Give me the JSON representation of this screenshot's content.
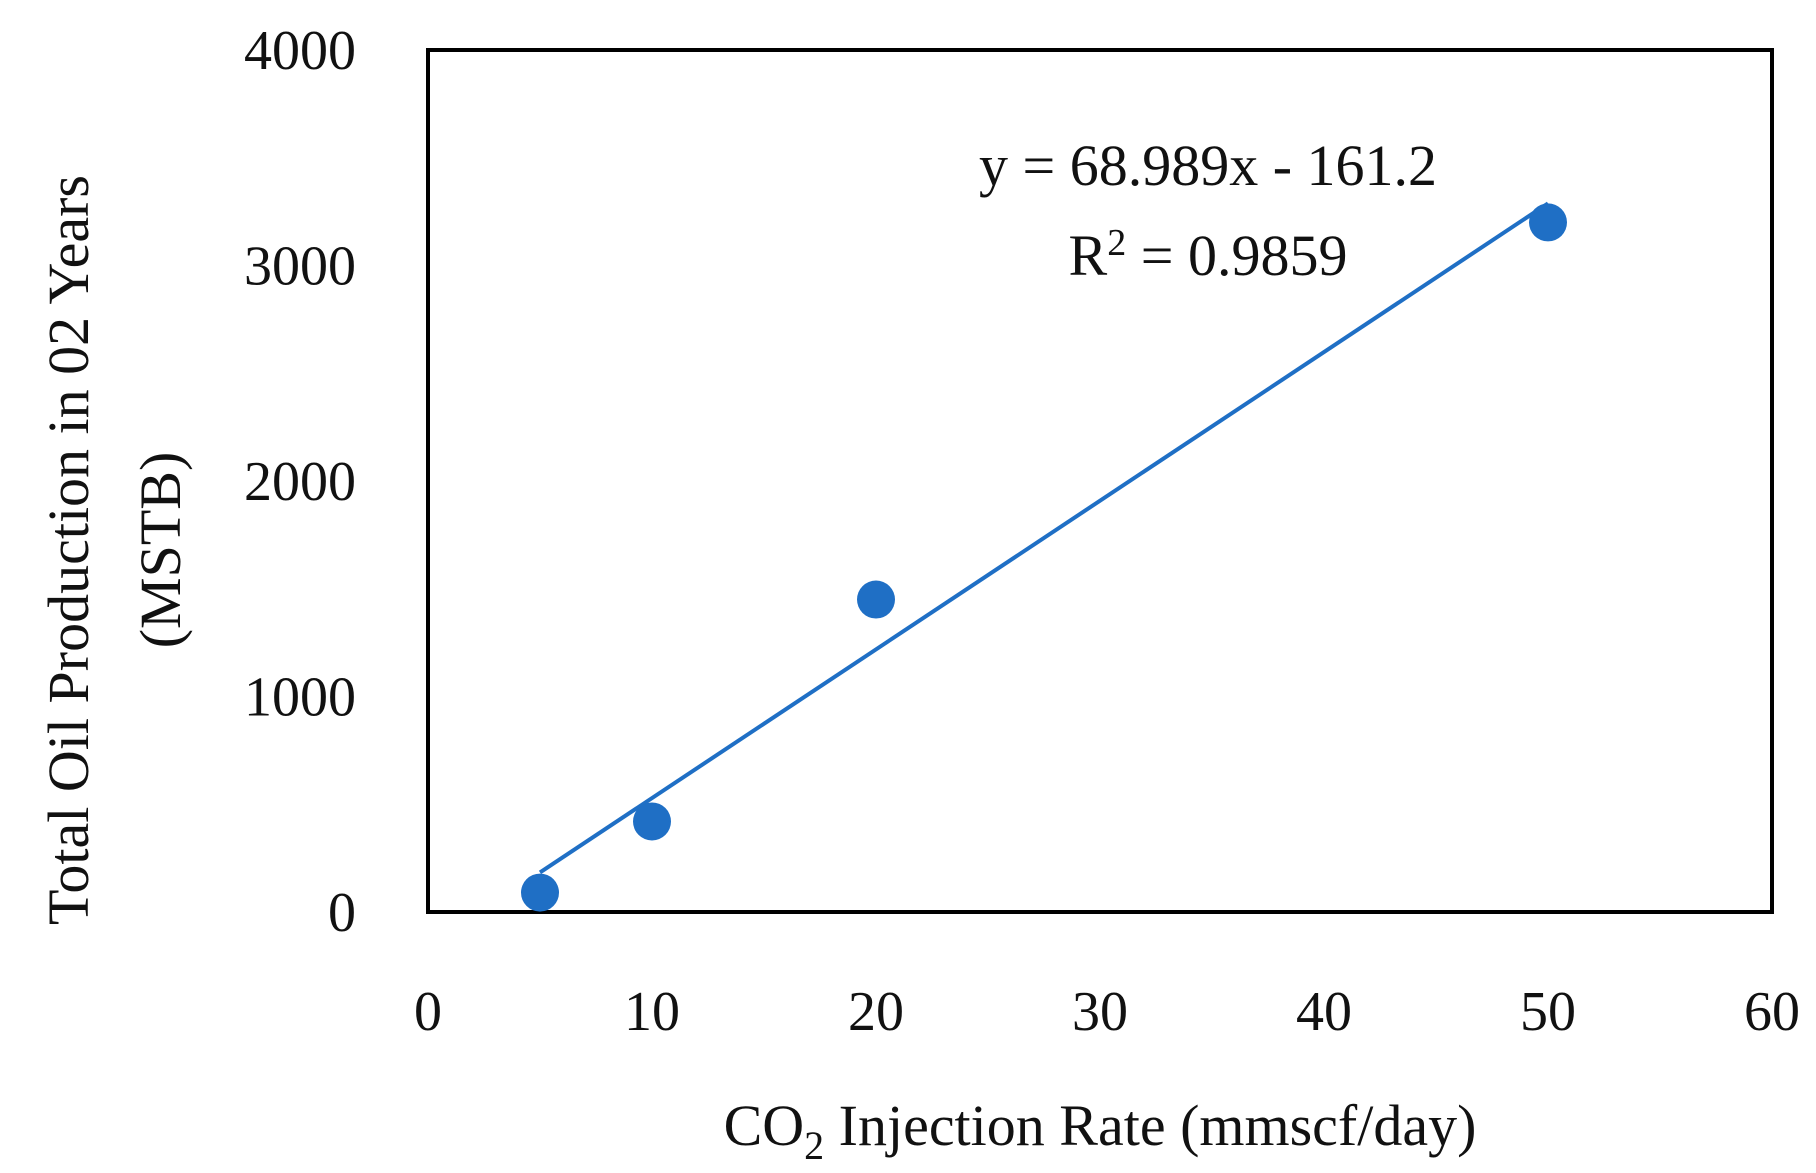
{
  "chart_data": {
    "type": "scatter",
    "title": "",
    "xlabel_main": "CO",
    "xlabel_sub": "2",
    "xlabel_rest": " Injection Rate (mmscf/day)",
    "ylabel_line1": "Total Oil Production in 02 Years",
    "ylabel_line2": "(MSTB)",
    "xlim": [
      0,
      60
    ],
    "ylim": [
      0,
      4000
    ],
    "x_ticks": [
      0,
      10,
      20,
      30,
      40,
      50,
      60
    ],
    "y_ticks": [
      0,
      1000,
      2000,
      3000,
      4000
    ],
    "x_tick_labels": [
      "0",
      "10",
      "20",
      "30",
      "40",
      "50",
      "60"
    ],
    "y_tick_labels": [
      "0",
      "1000",
      "2000",
      "3000",
      "4000"
    ],
    "grid": false,
    "series": [
      {
        "name": "Total Oil Production",
        "x": [
          5,
          10,
          20,
          50
        ],
        "y": [
          90,
          420,
          1450,
          3200
        ],
        "color": "#1f6fc5"
      }
    ],
    "trendline": {
      "slope": 68.989,
      "intercept": -161.2,
      "x_range": [
        5,
        50
      ],
      "color": "#1f6fc5"
    },
    "equation_text": "y = 68.989x - 161.2",
    "r2_prefix": "R",
    "r2_sup": "2",
    "r2_rest": " = 0.9859"
  }
}
